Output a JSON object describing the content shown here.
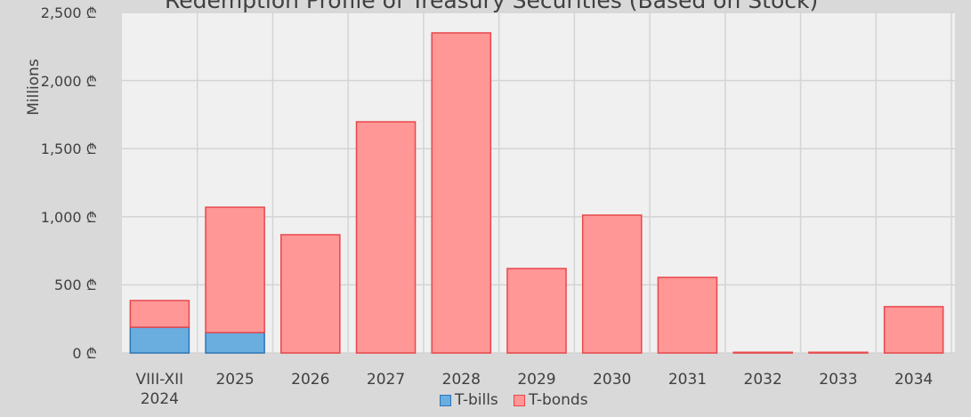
{
  "chart_data": {
    "type": "stacked_bar",
    "title": "Redemption Profile of Treasury Securities (Based on Stock)",
    "y_label": "Millions",
    "categories": [
      "VIII-XII 2024",
      "2025",
      "2026",
      "2027",
      "2028",
      "2029",
      "2030",
      "2031",
      "2032",
      "2033",
      "2034"
    ],
    "series": [
      {
        "name": "T-bills",
        "color": "#6aaee0",
        "edge": "#2e75b6",
        "values": [
          189,
          150,
          0,
          0,
          0,
          0,
          0,
          0,
          0,
          0,
          0
        ]
      },
      {
        "name": "T-bonds",
        "color": "#ff9797",
        "edge": "#e8474a",
        "values": [
          196,
          920,
          868,
          1697,
          2350,
          620,
          1012,
          555,
          5,
          5,
          340
        ]
      }
    ],
    "ylim": [
      0,
      2500
    ],
    "yticks": [
      {
        "value": 0,
        "label": "0 ₾"
      },
      {
        "value": 500,
        "label": "500 ₾"
      },
      {
        "value": 1000,
        "label": "1,000 ₾"
      },
      {
        "value": 1500,
        "label": "1,500 ₾"
      },
      {
        "value": 2000,
        "label": "2,000 ₾"
      },
      {
        "value": 2500,
        "label": "2,500 ₾"
      }
    ],
    "grid": true,
    "legend": "bottom"
  }
}
